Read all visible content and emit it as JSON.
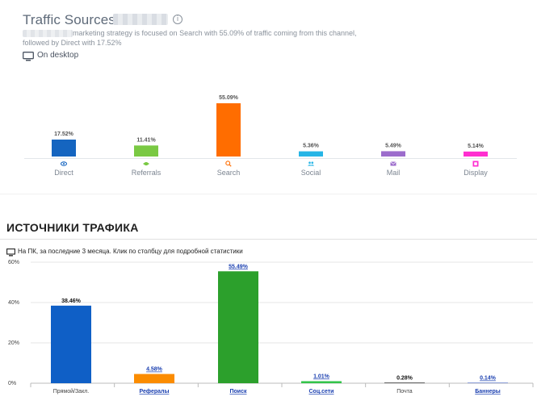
{
  "top": {
    "title": "Traffic Sources for",
    "info_icon": "info-icon",
    "description_line1": "marketing strategy is focused on Search with 55.09% of traffic coming from this channel,",
    "description_line2": "followed by Direct with 17.52%",
    "device_label": "On desktop",
    "device_icon": "monitor-icon"
  },
  "bottom": {
    "title": "ИСТОЧНИКИ ТРАФИКА",
    "note": "На ПК, за последние 3 месяца. Клик по столбцу для подробной статистики",
    "device_icon": "monitor-icon"
  },
  "chart_data": [
    {
      "type": "bar",
      "categories": [
        "Direct",
        "Referrals",
        "Search",
        "Social",
        "Mail",
        "Display"
      ],
      "values": [
        17.52,
        11.41,
        55.09,
        5.36,
        5.49,
        5.14
      ],
      "value_labels": [
        "17.52%",
        "11.41%",
        "55.09%",
        "5.36%",
        "5.49%",
        "5.14%"
      ],
      "colors": [
        "#1565c0",
        "#7ac943",
        "#ff6d00",
        "#26b5e6",
        "#9c6ccc",
        "#ff2ed0"
      ],
      "icons": [
        "eye-icon",
        "handshake-icon",
        "search-icon",
        "people-icon",
        "mail-icon",
        "display-icon"
      ],
      "ylim": [
        0,
        55.09
      ],
      "grid": false
    },
    {
      "type": "bar",
      "categories": [
        "Прямой/Закл.",
        "Рефералы",
        "Поиск",
        "Соц.сети",
        "Почта",
        "Баннеры"
      ],
      "values": [
        38.46,
        4.58,
        55.49,
        1.01,
        0.28,
        0.14
      ],
      "value_labels": [
        "38.46%",
        "4.58%",
        "55.49%",
        "1.01%",
        "0.28%",
        "0.14%"
      ],
      "colors": [
        "#0f5fc6",
        "#fb8c00",
        "#2ca02c",
        "#33c44a",
        "#222222",
        "#1a3fb0"
      ],
      "linked": [
        false,
        true,
        true,
        true,
        false,
        true
      ],
      "yticks": [
        "0%",
        "20%",
        "40%",
        "60%"
      ],
      "ylim": [
        0,
        60
      ],
      "grid": true
    }
  ]
}
